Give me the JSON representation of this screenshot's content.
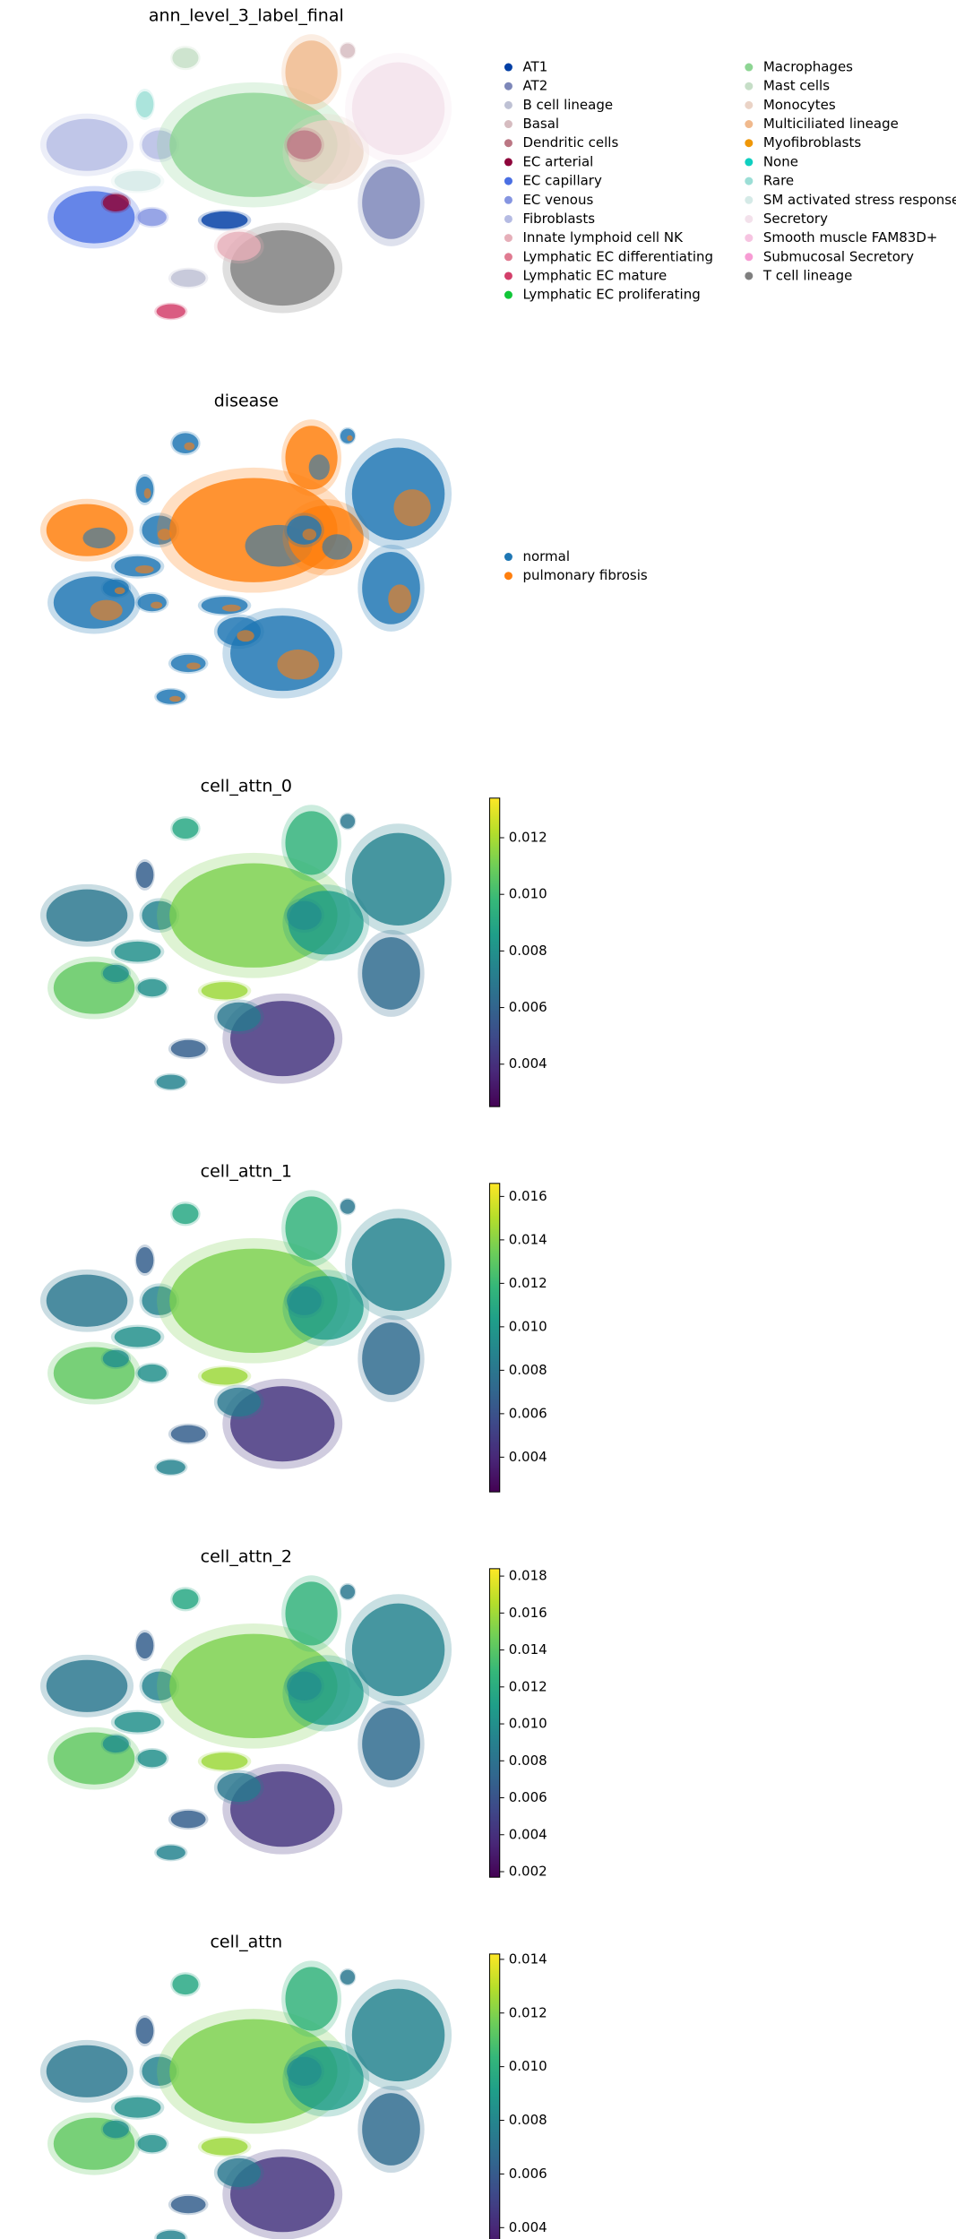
{
  "chart_data": [
    {
      "type": "scatter",
      "title": "ann_level_3_label_final",
      "series": [
        {
          "name": "AT1",
          "color": "#023fa5"
        },
        {
          "name": "AT2",
          "color": "#7d87b9"
        },
        {
          "name": "B cell lineage",
          "color": "#bec1d4"
        },
        {
          "name": "Basal",
          "color": "#d6bcc0"
        },
        {
          "name": "Dendritic cells",
          "color": "#bb7784"
        },
        {
          "name": "EC arterial",
          "color": "#8e063b"
        },
        {
          "name": "EC capillary",
          "color": "#4a6fe3"
        },
        {
          "name": "EC venous",
          "color": "#8595e1"
        },
        {
          "name": "Fibroblasts",
          "color": "#b5bbe3"
        },
        {
          "name": "Innate lymphoid cell NK",
          "color": "#e6afb9"
        },
        {
          "name": "Lymphatic EC differentiating",
          "color": "#e07b91"
        },
        {
          "name": "Lymphatic EC mature",
          "color": "#d33f6a"
        },
        {
          "name": "Lymphatic EC proliferating",
          "color": "#11c638"
        },
        {
          "name": "Macrophages",
          "color": "#8dd593"
        },
        {
          "name": "Mast cells",
          "color": "#c6dec7"
        },
        {
          "name": "Monocytes",
          "color": "#ead3c6"
        },
        {
          "name": "Multiciliated lineage",
          "color": "#f0b98d"
        },
        {
          "name": "Myofibroblasts",
          "color": "#ef9708"
        },
        {
          "name": "None",
          "color": "#0fcfc0"
        },
        {
          "name": "Rare",
          "color": "#9cded6"
        },
        {
          "name": "SM activated stress response",
          "color": "#d5eae7"
        },
        {
          "name": "Secretory",
          "color": "#f3e1eb"
        },
        {
          "name": "Smooth muscle FAM83D+",
          "color": "#f6c4e1"
        },
        {
          "name": "Submucosal Secretory",
          "color": "#f79cd4"
        },
        {
          "name": "T cell lineage",
          "color": "#7f7f7f"
        }
      ]
    },
    {
      "type": "scatter",
      "title": "disease",
      "series": [
        {
          "name": "normal",
          "color": "#1f77b4"
        },
        {
          "name": "pulmonary fibrosis",
          "color": "#ff7f0e"
        }
      ]
    },
    {
      "type": "scatter",
      "title": "cell_attn_0",
      "colormap": "viridis",
      "colorscale": [
        "#440154",
        "#482878",
        "#3e4989",
        "#31688e",
        "#26828e",
        "#1f9e89",
        "#35b779",
        "#6ece58",
        "#b5de2b",
        "#fde725"
      ],
      "ylim": [
        0.0025,
        0.0134
      ],
      "yticks": [
        0.004,
        0.006,
        0.008,
        {
          "value": 0.01,
          "label": "0.010"
        },
        0.012
      ]
    },
    {
      "type": "scatter",
      "title": "cell_attn_1",
      "colormap": "viridis",
      "colorscale": [
        "#440154",
        "#482878",
        "#3e4989",
        "#31688e",
        "#26828e",
        "#1f9e89",
        "#35b779",
        "#6ece58",
        "#b5de2b",
        "#fde725"
      ],
      "ylim": [
        0.0024,
        0.0166
      ],
      "yticks": [
        0.004,
        0.006,
        0.008,
        {
          "value": 0.01,
          "label": "0.010"
        },
        0.012,
        0.014,
        0.016
      ]
    },
    {
      "type": "scatter",
      "title": "cell_attn_2",
      "colormap": "viridis",
      "colorscale": [
        "#440154",
        "#482878",
        "#3e4989",
        "#31688e",
        "#26828e",
        "#1f9e89",
        "#35b779",
        "#6ece58",
        "#b5de2b",
        "#fde725"
      ],
      "ylim": [
        0.0017,
        0.0184
      ],
      "yticks": [
        0.002,
        0.004,
        0.006,
        0.008,
        {
          "value": 0.01,
          "label": "0.010"
        },
        0.012,
        0.014,
        0.016,
        0.018
      ]
    },
    {
      "type": "scatter",
      "title": "cell_attn",
      "colormap": "viridis",
      "colorscale": [
        "#440154",
        "#482878",
        "#3e4989",
        "#31688e",
        "#26828e",
        "#1f9e89",
        "#35b779",
        "#6ece58",
        "#b5de2b",
        "#fde725"
      ],
      "ylim": [
        0.0027,
        0.0142
      ],
      "yticks": [
        0.004,
        0.006,
        0.008,
        {
          "value": 0.01,
          "label": "0.010"
        },
        0.012,
        0.014
      ]
    }
  ]
}
